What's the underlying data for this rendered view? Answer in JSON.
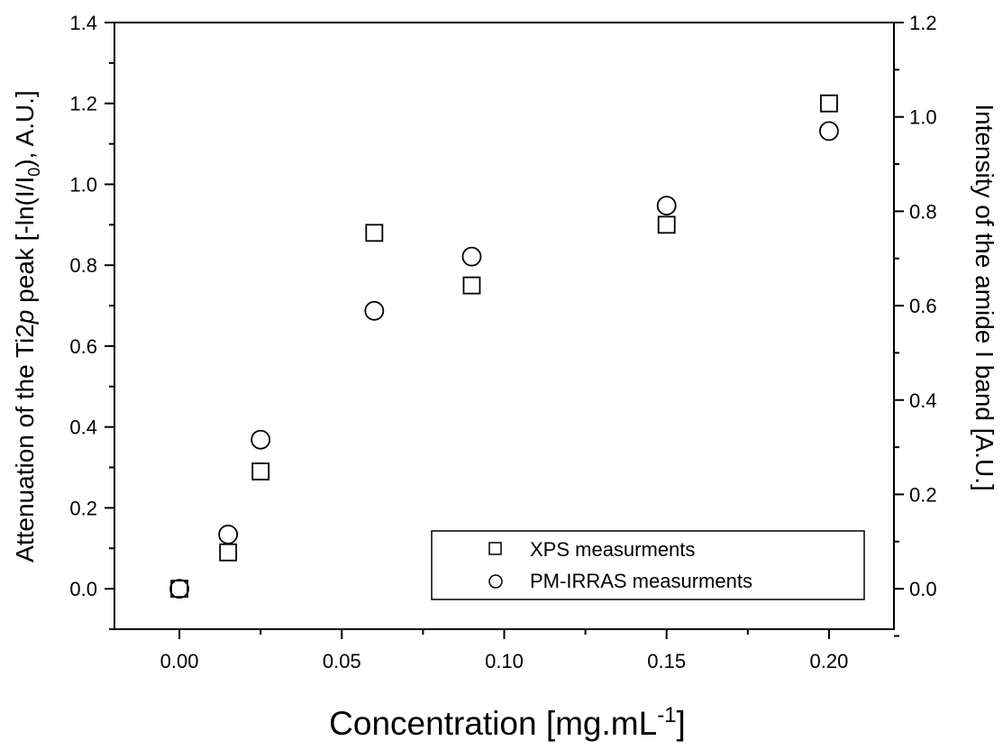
{
  "chart_data": {
    "type": "scatter",
    "xlabel": {
      "main": "Concentration [mg.mL",
      "sup": "-1",
      "end": "]"
    },
    "ylabel_left": {
      "a": "Attenuation of the Ti2",
      "b": "p",
      "c": " peak [-ln(I/I",
      "sub": "0",
      "d": "), A.U.]"
    },
    "ylabel_right": "Intensity of the amide I band [A.U.]",
    "xlim": [
      -0.02,
      0.22
    ],
    "ylim_left": [
      -0.1,
      1.4
    ],
    "ylim_right": [
      -0.0857,
      1.2
    ],
    "x_ticks": [
      "0.00",
      "0.05",
      "0.10",
      "0.15",
      "0.20"
    ],
    "y_left_ticks": [
      "0.0",
      "0.2",
      "0.4",
      "0.6",
      "0.8",
      "1.0",
      "1.2",
      "1.4"
    ],
    "y_right_ticks": [
      "0.0",
      "0.2",
      "0.4",
      "0.6",
      "0.8",
      "1.0",
      "1.2"
    ],
    "series": [
      {
        "name": "XPS measurments",
        "axis": "left",
        "marker": "square",
        "x": [
          0.0,
          0.015,
          0.025,
          0.06,
          0.09,
          0.15,
          0.2
        ],
        "y": [
          0.0,
          0.09,
          0.29,
          0.88,
          0.75,
          0.9,
          1.2
        ]
      },
      {
        "name": "PM-IRRAS measurments",
        "axis": "right",
        "marker": "circle",
        "x": [
          0.0,
          0.015,
          0.025,
          0.06,
          0.09,
          0.15,
          0.2
        ],
        "y": [
          0.0,
          0.115,
          0.316,
          0.589,
          0.704,
          0.812,
          0.97
        ]
      }
    ],
    "legend_position": "bottom-right",
    "grid": false
  }
}
